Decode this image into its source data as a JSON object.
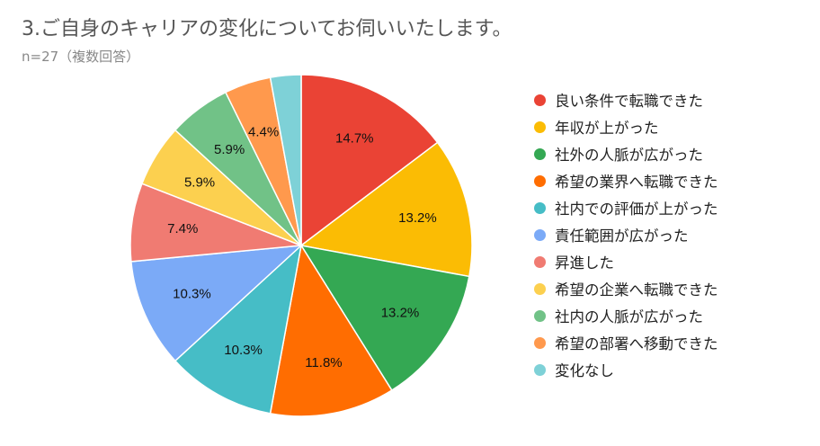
{
  "header": {
    "title": "3.ご自身のキャリアの変化についてお伺いいたします。",
    "subtitle": "n=27（複数回答）"
  },
  "chart_data": {
    "type": "pie",
    "title": "3.ご自身のキャリアの変化についてお伺いいたします。",
    "subtitle": "n=27（複数回答）",
    "legend_position": "right",
    "start_angle": "top",
    "direction": "clockwise",
    "slices": [
      {
        "label": "良い条件で転職できた",
        "value": 14.7,
        "display": "14.7%",
        "color": "#ea4335"
      },
      {
        "label": "年収が上がった",
        "value": 13.2,
        "display": "13.2%",
        "color": "#fbbc04"
      },
      {
        "label": "社外の人脈が広がった",
        "value": 13.2,
        "display": "13.2%",
        "color": "#34a853"
      },
      {
        "label": "希望の業界へ転職できた",
        "value": 11.8,
        "display": "11.8%",
        "color": "#ff6d01"
      },
      {
        "label": "社内での評価が上がった",
        "value": 10.3,
        "display": "10.3%",
        "color": "#46bdc6"
      },
      {
        "label": "責任範囲が広がった",
        "value": 10.3,
        "display": "10.3%",
        "color": "#7baaf7"
      },
      {
        "label": "昇進した",
        "value": 7.4,
        "display": "7.4%",
        "color": "#f07b72"
      },
      {
        "label": "希望の企業へ転職できた",
        "value": 5.9,
        "display": "5.9%",
        "color": "#fcd04f"
      },
      {
        "label": "社内の人脈が広がった",
        "value": 5.9,
        "display": "5.9%",
        "color": "#71c287"
      },
      {
        "label": "希望の部署へ移動できた",
        "value": 4.4,
        "display": "4.4%",
        "color": "#ff994d"
      },
      {
        "label": "変化なし",
        "value": 2.9,
        "display": "",
        "color": "#7ed1d7"
      }
    ]
  }
}
